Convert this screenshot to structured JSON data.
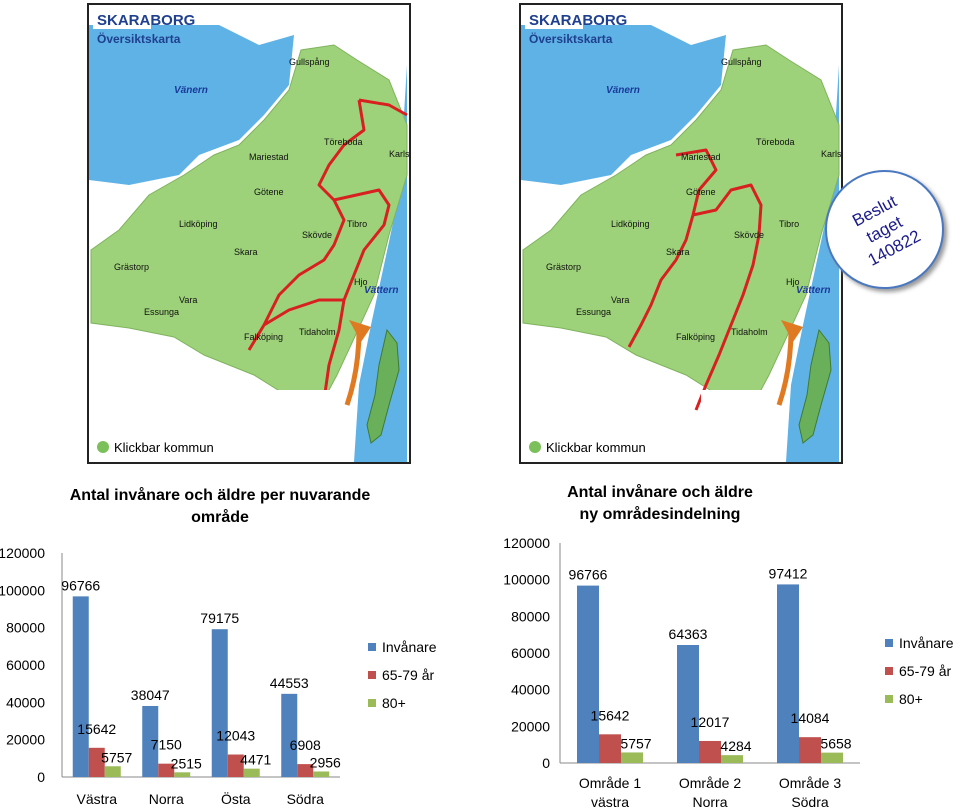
{
  "maps": [
    {
      "header_title": "SKARABORG",
      "header_subtitle": "Översiktskarta",
      "lake_labels": [
        "Vänern",
        "Vättern"
      ],
      "municipalities": [
        "Gullspång",
        "Mariestad",
        "Töreboda",
        "Karlsborg",
        "Götene",
        "Lidköping",
        "Skövde",
        "Tibro",
        "Skara",
        "Grästorp",
        "Vara",
        "Hjo",
        "Essunga",
        "Falköping",
        "Tidaholm"
      ],
      "legend_label": "Klickbar kommun"
    },
    {
      "header_title": "SKARABORG",
      "header_subtitle": "Översiktskarta",
      "lake_labels": [
        "Vänern",
        "Vättern"
      ],
      "municipalities": [
        "Gullspång",
        "Mariestad",
        "Töreboda",
        "Karlsborg",
        "Götene",
        "Lidköping",
        "Skövde",
        "Tibro",
        "Skara",
        "Grästorp",
        "Vara",
        "Hjo",
        "Essunga",
        "Falköping",
        "Tidaholm"
      ],
      "legend_label": "Klickbar kommun"
    }
  ],
  "callout": {
    "text": "Beslut\ntaget\n140822"
  },
  "colors": {
    "invanare": "#4F81BD",
    "aldre_65_79": "#C0504D",
    "aldre_80": "#9BBB59",
    "map_land": "#9ED27A",
    "map_water": "#5FB2E6",
    "map_border": "#D92020",
    "header_text": "#1F3F8F"
  },
  "chart_data": [
    {
      "type": "bar",
      "title": "Antal invånare och äldre per nuvarande område",
      "title_lines": [
        "Antal invånare och äldre per nuvarande",
        "område"
      ],
      "categories": [
        "Västra",
        "Norra",
        "Östa",
        "Södra"
      ],
      "category_lines": [
        [
          "Västra"
        ],
        [
          "Norra"
        ],
        [
          "Östa"
        ],
        [
          "Södra"
        ]
      ],
      "series": [
        {
          "name": "Invånare",
          "values": [
            96766,
            38047,
            79175,
            44553
          ]
        },
        {
          "name": "65-79 år",
          "values": [
            15642,
            7150,
            12043,
            6908
          ]
        },
        {
          "name": "80+",
          "values": [
            5757,
            2515,
            4471,
            2956
          ]
        }
      ],
      "ylim": [
        0,
        120000
      ],
      "yticks": [
        "0",
        "20000",
        "40000",
        "60000",
        "80000",
        "100000",
        "120000"
      ],
      "grid": false,
      "legend": "right"
    },
    {
      "type": "bar",
      "title": "Antal invånare och äldre ny områdesindelning",
      "title_lines": [
        "Antal invånare och äldre",
        "ny områdesindelning"
      ],
      "categories": [
        "Område 1 västra",
        "Område 2 Norra",
        "Område 3 Södra"
      ],
      "category_lines": [
        [
          "Område 1",
          "västra"
        ],
        [
          "Område 2",
          "Norra"
        ],
        [
          "Område 3",
          "Södra"
        ]
      ],
      "series": [
        {
          "name": "Invånare",
          "values": [
            96766,
            64363,
            97412
          ]
        },
        {
          "name": "65-79 år",
          "values": [
            15642,
            12017,
            14084
          ]
        },
        {
          "name": "80+",
          "values": [
            5757,
            4284,
            5658
          ]
        }
      ],
      "ylim": [
        0,
        120000
      ],
      "yticks": [
        "0",
        "20000",
        "40000",
        "60000",
        "80000",
        "100000",
        "120000"
      ],
      "grid": false,
      "legend": "right"
    }
  ]
}
